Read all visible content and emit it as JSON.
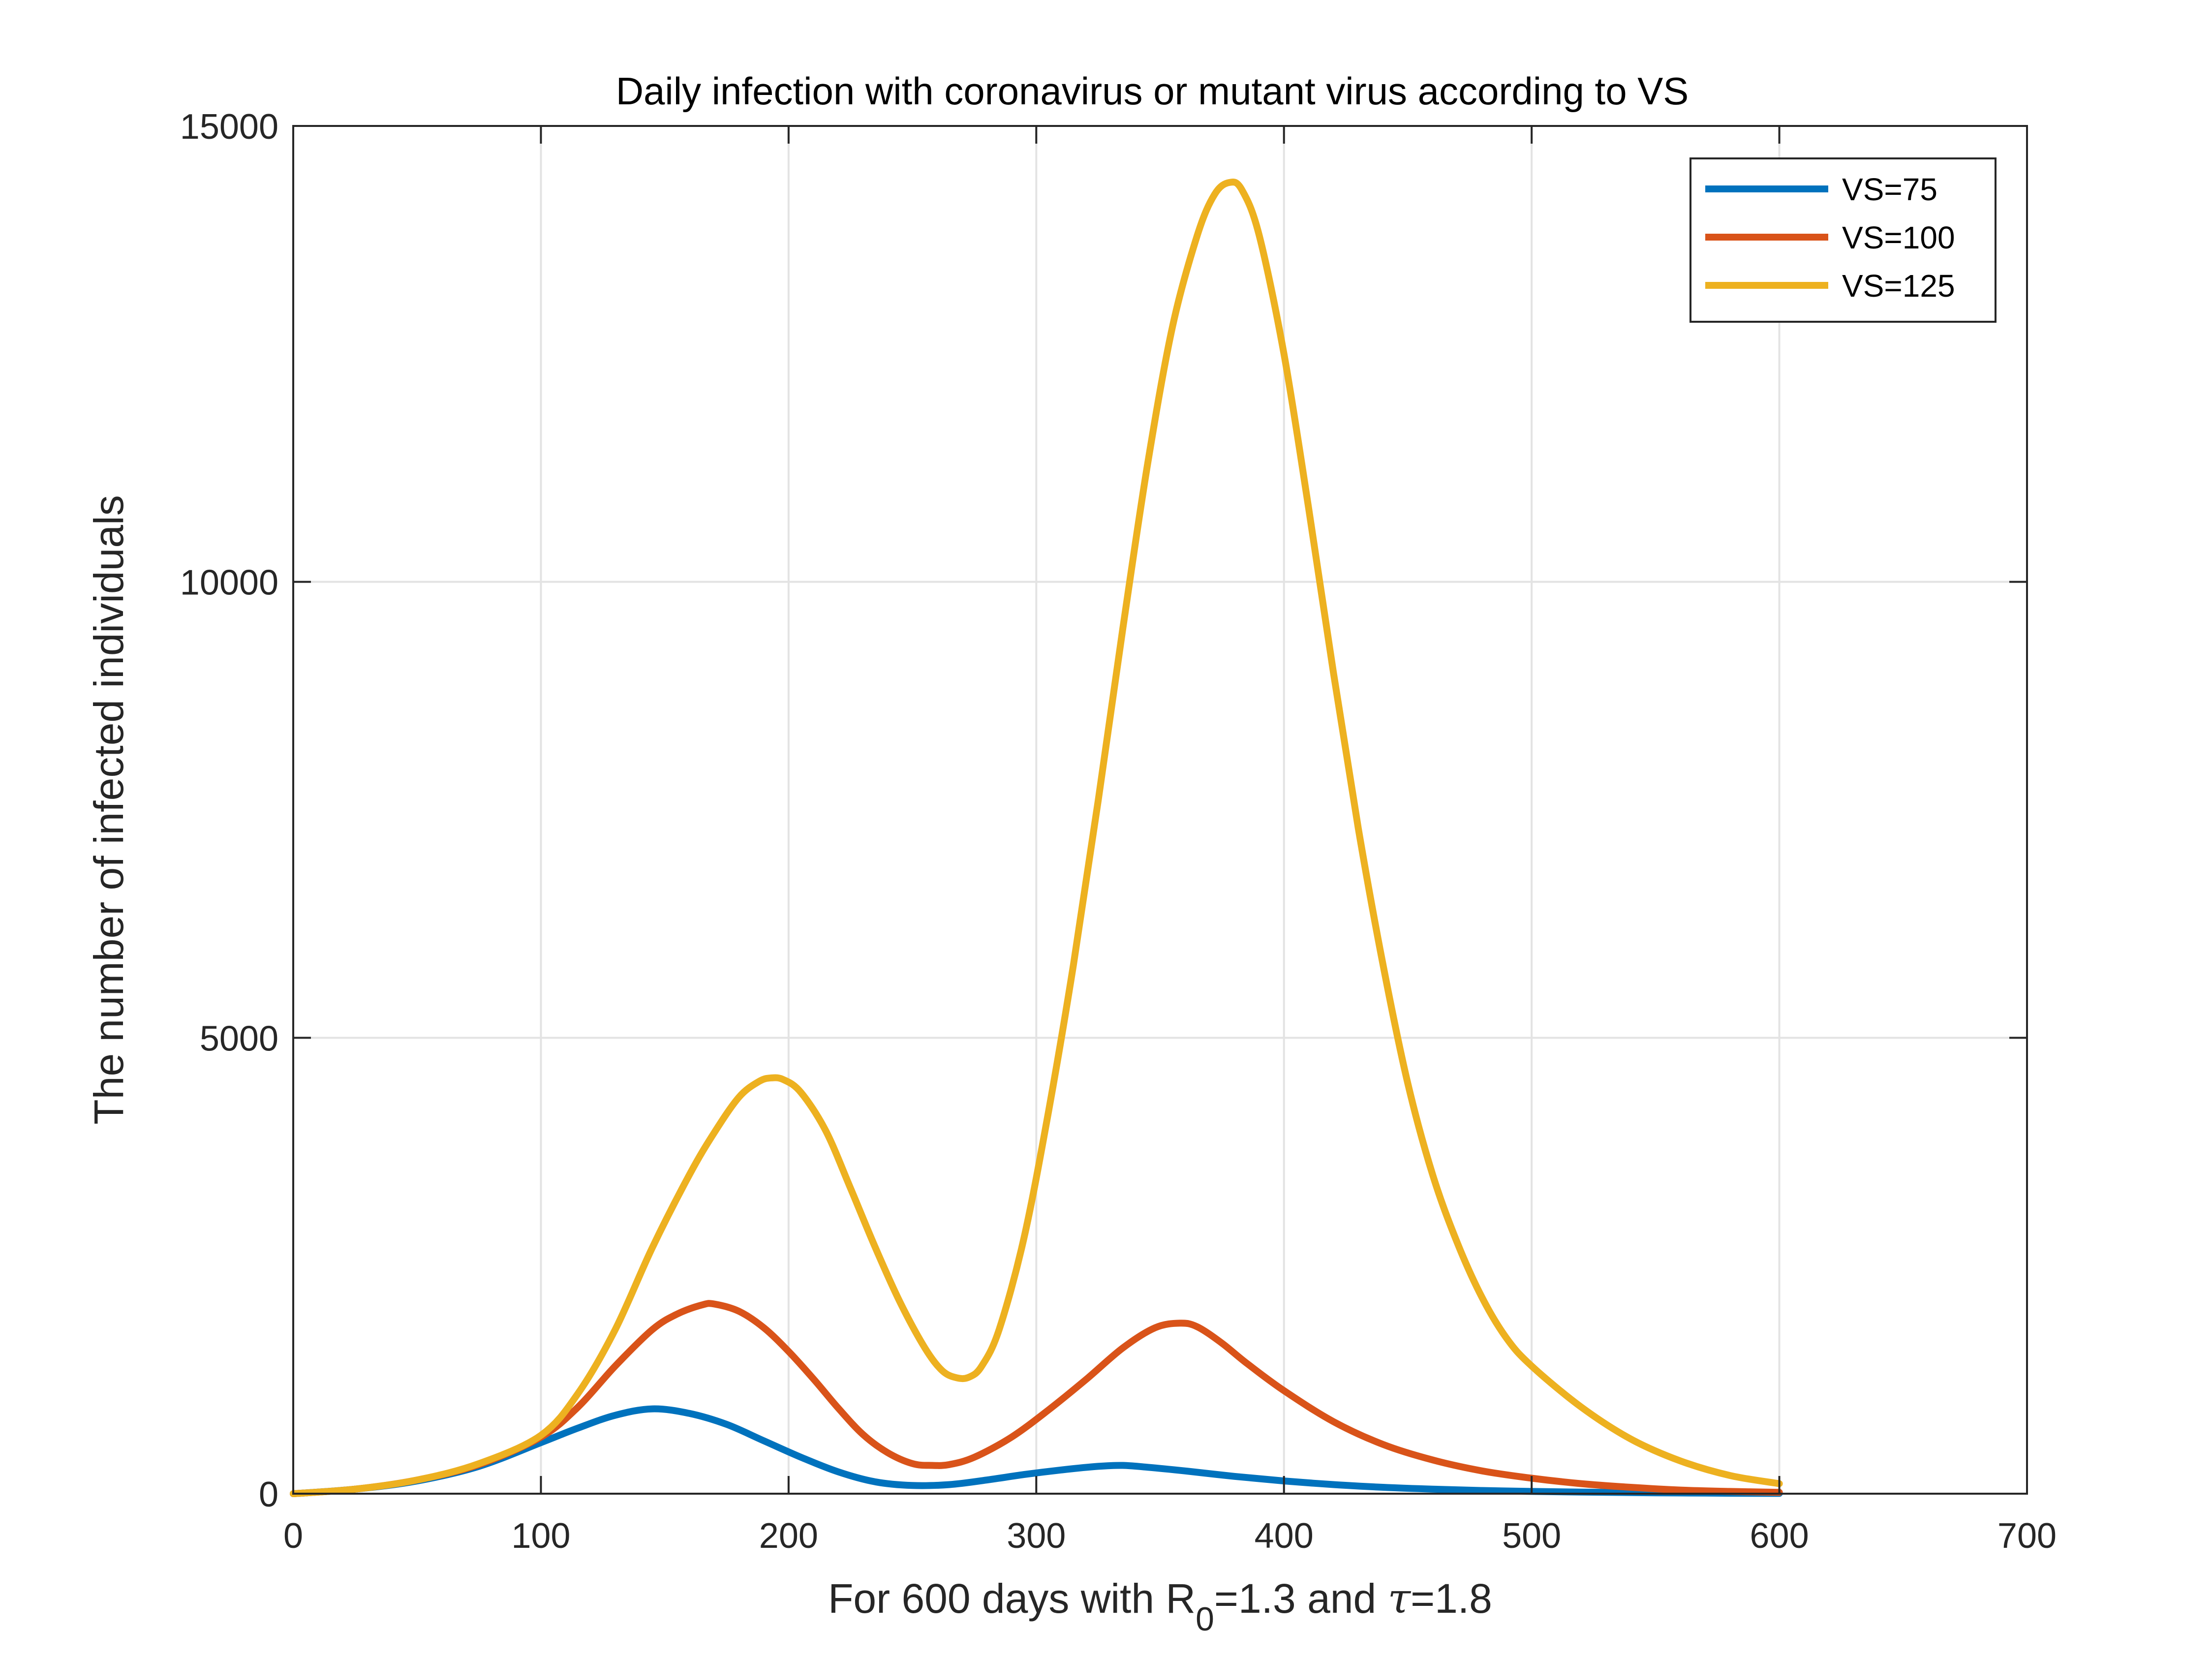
{
  "chart_data": {
    "type": "line",
    "title": "Daily infection with coronavirus or mutant virus according to VS",
    "xlabel": {
      "prefix": "For 600 days with R",
      "subscript": "0",
      "middle": "=1.3 and ",
      "tau": "τ",
      "suffix": "=1.8"
    },
    "ylabel": "The number of infected individuals",
    "xlim": [
      0,
      700
    ],
    "ylim": [
      0,
      15000
    ],
    "xticks": [
      0,
      100,
      200,
      300,
      400,
      500,
      600,
      700
    ],
    "yticks": [
      0,
      5000,
      10000,
      15000
    ],
    "xtick_labels": [
      "0",
      "100",
      "200",
      "300",
      "400",
      "500",
      "600",
      "700"
    ],
    "ytick_labels": [
      "0",
      "5000",
      "10000",
      "15000"
    ],
    "grid": true,
    "legend_position": "top-right",
    "series": [
      {
        "name": "VS=75",
        "color": "#0072BD",
        "x": [
          0,
          25,
          50,
          75,
          100,
          115,
          130,
          145,
          160,
          175,
          190,
          205,
          220,
          235,
          250,
          265,
          280,
          295,
          310,
          325,
          335,
          345,
          360,
          380,
          400,
          420,
          440,
          460,
          480,
          500,
          520,
          540,
          560,
          580,
          600
        ],
        "y": [
          0,
          50,
          140,
          300,
          560,
          720,
          860,
          930,
          880,
          760,
          580,
          400,
          240,
          130,
          90,
          100,
          150,
          210,
          260,
          300,
          310,
          290,
          250,
          190,
          140,
          100,
          70,
          50,
          35,
          25,
          18,
          12,
          8,
          5,
          3
        ]
      },
      {
        "name": "VS=100",
        "color": "#D95319",
        "x": [
          0,
          25,
          50,
          75,
          100,
          115,
          130,
          145,
          155,
          165,
          170,
          180,
          190,
          200,
          210,
          220,
          230,
          240,
          250,
          258,
          265,
          275,
          290,
          305,
          320,
          335,
          348,
          358,
          365,
          375,
          385,
          400,
          420,
          440,
          460,
          480,
          500,
          520,
          540,
          560,
          580,
          600
        ],
        "y": [
          0,
          50,
          150,
          320,
          620,
          950,
          1400,
          1800,
          1970,
          2070,
          2080,
          2000,
          1820,
          1560,
          1260,
          940,
          650,
          450,
          330,
          310,
          320,
          400,
          620,
          920,
          1250,
          1600,
          1820,
          1870,
          1830,
          1650,
          1430,
          1130,
          790,
          540,
          370,
          250,
          170,
          110,
          70,
          40,
          25,
          15
        ]
      },
      {
        "name": "VS=125",
        "color": "#EDB120",
        "x": [
          0,
          25,
          50,
          75,
          100,
          115,
          130,
          145,
          160,
          170,
          180,
          188,
          193,
          198,
          205,
          215,
          225,
          235,
          245,
          255,
          262,
          268,
          273,
          278,
          285,
          295,
          305,
          315,
          325,
          335,
          345,
          355,
          365,
          372,
          378,
          383,
          390,
          400,
          410,
          420,
          430,
          440,
          450,
          460,
          470,
          480,
          490,
          500,
          520,
          540,
          560,
          580,
          600
        ],
        "y": [
          0,
          50,
          150,
          330,
          640,
          1100,
          1800,
          2700,
          3500,
          3960,
          4350,
          4520,
          4560,
          4540,
          4400,
          3980,
          3350,
          2700,
          2100,
          1600,
          1350,
          1270,
          1280,
          1400,
          1800,
          2800,
          4200,
          5800,
          7600,
          9500,
          11300,
          12800,
          13800,
          14250,
          14380,
          14300,
          13800,
          12500,
          10800,
          9000,
          7300,
          5800,
          4500,
          3500,
          2750,
          2150,
          1700,
          1400,
          950,
          600,
          360,
          200,
          110
        ]
      }
    ]
  }
}
